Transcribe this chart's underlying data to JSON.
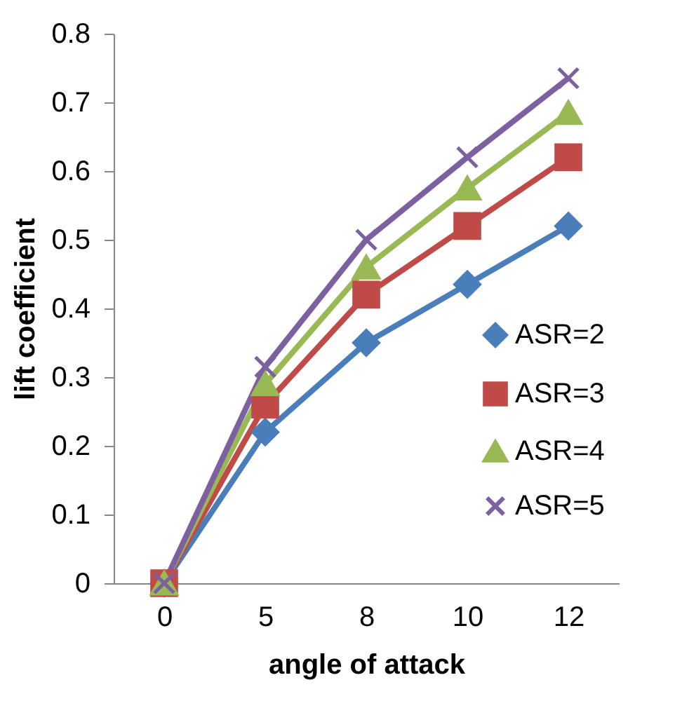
{
  "chart_data": {
    "type": "line",
    "xlabel": "angle of attack",
    "ylabel": "lift coefficient",
    "categories": [
      "0",
      "5",
      "8",
      "10",
      "12"
    ],
    "series": [
      {
        "name": "ASR=2",
        "color": "#4a7ebb",
        "marker": "diamond",
        "values": [
          0,
          0.22,
          0.35,
          0.435,
          0.52
        ]
      },
      {
        "name": "ASR=3",
        "color": "#be4b48",
        "marker": "square",
        "values": [
          0,
          0.26,
          0.42,
          0.52,
          0.62
        ]
      },
      {
        "name": "ASR=4",
        "color": "#98b954",
        "marker": "triangle",
        "values": [
          0,
          0.29,
          0.46,
          0.575,
          0.685
        ]
      },
      {
        "name": "ASR=5",
        "color": "#7d60a0",
        "marker": "cross",
        "values": [
          0,
          0.315,
          0.5,
          0.62,
          0.735
        ]
      }
    ],
    "ylim": [
      0,
      0.8
    ],
    "yticks": [
      0,
      0.1,
      0.2,
      0.3,
      0.4,
      0.5,
      0.6,
      0.7,
      0.8
    ],
    "grid": false,
    "legend": "bottom right"
  }
}
